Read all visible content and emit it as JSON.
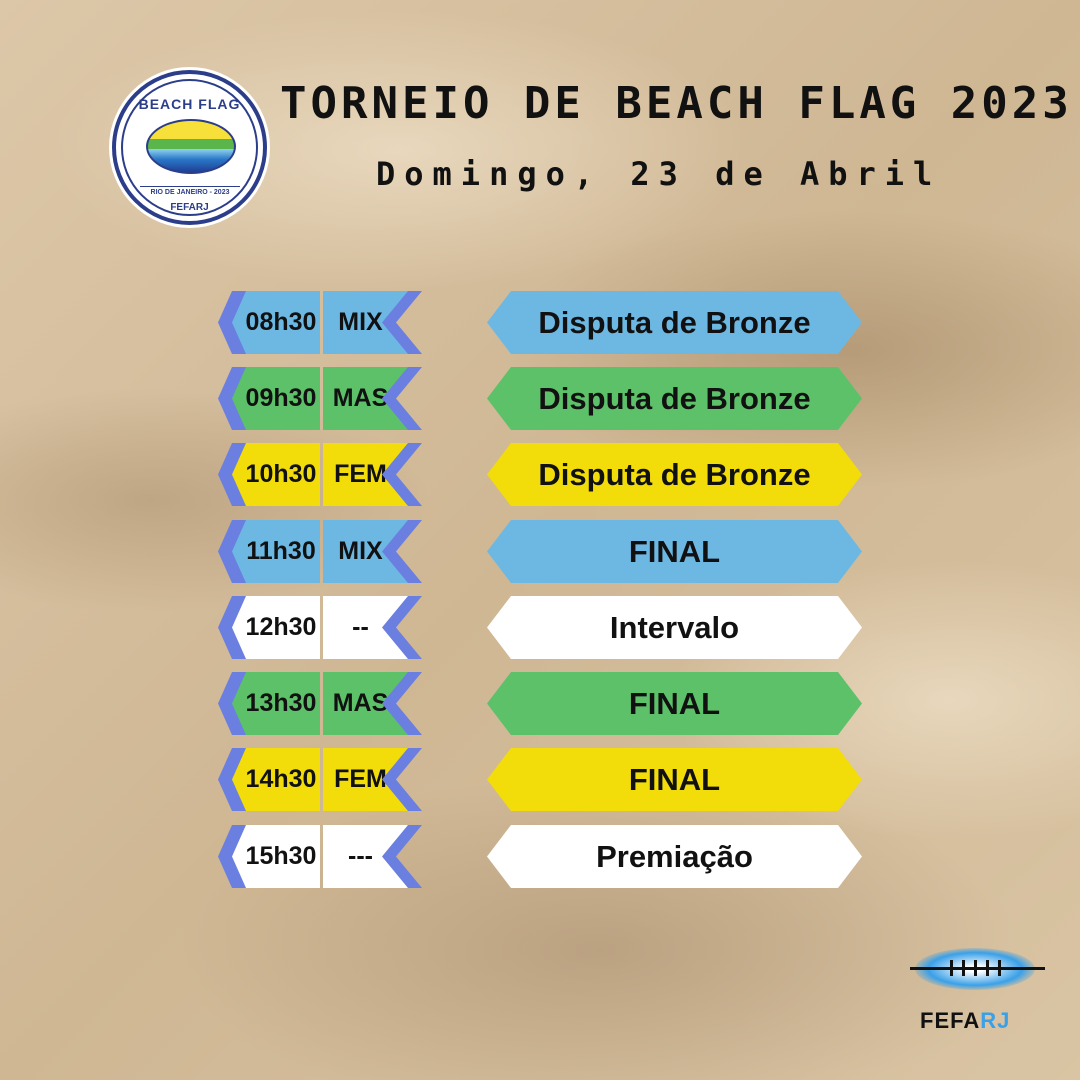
{
  "header": {
    "title": "TORNEIO DE BEACH FLAG 2023",
    "subtitle": "Domingo, 23 de Abril"
  },
  "logo": {
    "top_text": "BEACH FLAG",
    "location": "RIO DE JANEIRO - 2023",
    "org": "FEFARJ"
  },
  "colors": {
    "blue": "#6cb8e3",
    "green": "#5cc168",
    "yellow": "#f2dc0a",
    "white": "#ffffff",
    "accent": "#6b7fe0"
  },
  "schedule": [
    {
      "time": "08h30",
      "category": "MIX",
      "event": "Disputa de Bronze",
      "color": "#6cb8e3"
    },
    {
      "time": "09h30",
      "category": "MAS",
      "event": "Disputa de Bronze",
      "color": "#5cc168"
    },
    {
      "time": "10h30",
      "category": "FEM",
      "event": "Disputa de Bronze",
      "color": "#f2dc0a"
    },
    {
      "time": "11h30",
      "category": "MIX",
      "event": "FINAL",
      "color": "#6cb8e3"
    },
    {
      "time": "12h30",
      "category": "--",
      "event": "Intervalo",
      "color": "#ffffff"
    },
    {
      "time": "13h30",
      "category": "MAS",
      "event": "FINAL",
      "color": "#5cc168"
    },
    {
      "time": "14h30",
      "category": "FEM",
      "event": "FINAL",
      "color": "#f2dc0a"
    },
    {
      "time": "15h30",
      "category": "---",
      "event": "Premiação",
      "color": "#ffffff"
    }
  ],
  "footer_logo": {
    "text_a": "FEFA",
    "text_b": "RJ"
  }
}
